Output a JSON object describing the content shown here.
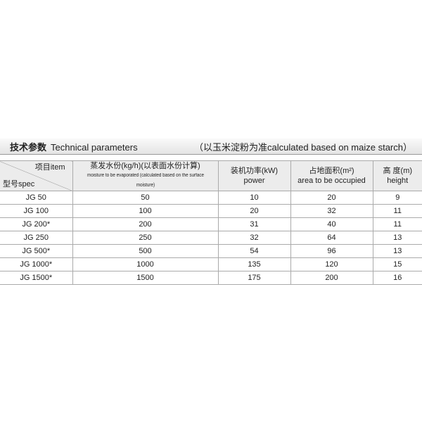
{
  "title": {
    "cn": "技术参数",
    "en": "Technical parameters",
    "note": "（以玉米淀粉为准calculated based on maize starch）"
  },
  "header": {
    "item": "项目item",
    "spec": "型号spec",
    "moisture_cn": "蒸发水份(kg/h)(以表面水份计算)",
    "moisture_en": "moisture to be evaporated (calculated based on the surface moisture)",
    "power_cn": "装机功率(kW)",
    "power_en": "power",
    "area_cn": "占地面积(m²)",
    "area_en": "area to be occupied",
    "height_cn": "高 度(m)",
    "height_en": "height"
  },
  "rows": [
    [
      "JG 50",
      "50",
      "10",
      "20",
      "9"
    ],
    [
      "JG 100",
      "100",
      "20",
      "32",
      "11"
    ],
    [
      "JG 200*",
      "200",
      "31",
      "40",
      "11"
    ],
    [
      "JG 250",
      "250",
      "32",
      "64",
      "13"
    ],
    [
      "JG 500*",
      "500",
      "54",
      "96",
      "13"
    ],
    [
      "JG 1000*",
      "1000",
      "135",
      "120",
      "15"
    ],
    [
      "JG 1500*",
      "1500",
      "175",
      "200",
      "16"
    ]
  ]
}
